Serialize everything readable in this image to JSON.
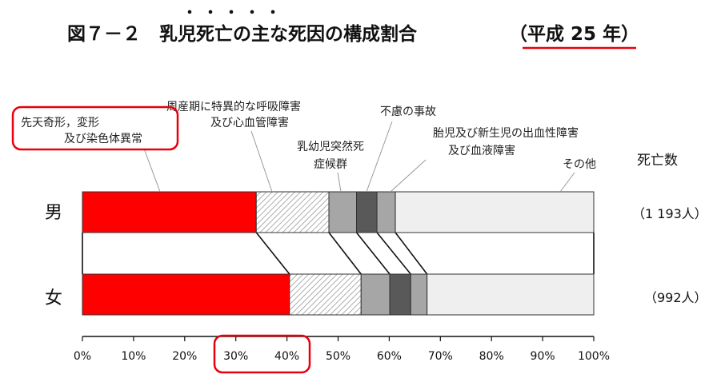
{
  "title": {
    "main": "図７－２　乳児死亡の主な死因の構成割合",
    "year": "（平成 25 年）",
    "emphasis_dots": "・・・・・"
  },
  "count_header": "死亡数",
  "chart_data": {
    "type": "bar",
    "orientation": "horizontal-stacked-100",
    "categories": [
      "男",
      "女"
    ],
    "counts": [
      "（1 193人）",
      "（992人）"
    ],
    "xlim": [
      0,
      100
    ],
    "x_ticks": [
      "0%",
      "10%",
      "20%",
      "30%",
      "40%",
      "50%",
      "60%",
      "70%",
      "80%",
      "90%",
      "100%"
    ],
    "series": [
      {
        "name": "先天奇形，変形及び染色体異常",
        "values": [
          34.0,
          40.5
        ],
        "color": "#ff0000",
        "fill": "solid"
      },
      {
        "name": "周産期に特異的な呼吸障害及び心血管障害",
        "values": [
          14.2,
          14.0
        ],
        "color": "#ffffff",
        "fill": "hatch"
      },
      {
        "name": "乳幼児突然死症候群",
        "values": [
          5.4,
          5.6
        ],
        "color": "#a6a6a6",
        "fill": "solid"
      },
      {
        "name": "不慮の事故",
        "values": [
          4.0,
          4.1
        ],
        "color": "#595959",
        "fill": "solid"
      },
      {
        "name": "胎児及び新生児の出血性障害及び血液障害",
        "values": [
          3.6,
          3.2
        ],
        "color": "#a6a6a6",
        "fill": "solid"
      },
      {
        "name": "その他",
        "values": [
          38.8,
          32.6
        ],
        "color": "#efefef",
        "fill": "solid"
      }
    ],
    "labels": [
      {
        "lines": [
          "先天奇形，変形",
          "及び染色体異常"
        ]
      },
      {
        "lines": [
          "周産期に特異的な呼吸障害",
          "及び心血管障害"
        ]
      },
      {
        "lines": [
          "乳幼児突然死",
          "症候群"
        ]
      },
      {
        "lines": [
          "不慮の事故"
        ]
      },
      {
        "lines": [
          "胎児及び新生児の出血性障害",
          "及び血液障害"
        ]
      },
      {
        "lines": [
          "その他"
        ]
      }
    ],
    "highlights": [
      "先天奇形，変形及び染色体異常",
      "30%",
      "40%",
      "平成 25 年"
    ],
    "highlight_color": "#e8000b",
    "grid": false,
    "legend": "none"
  }
}
